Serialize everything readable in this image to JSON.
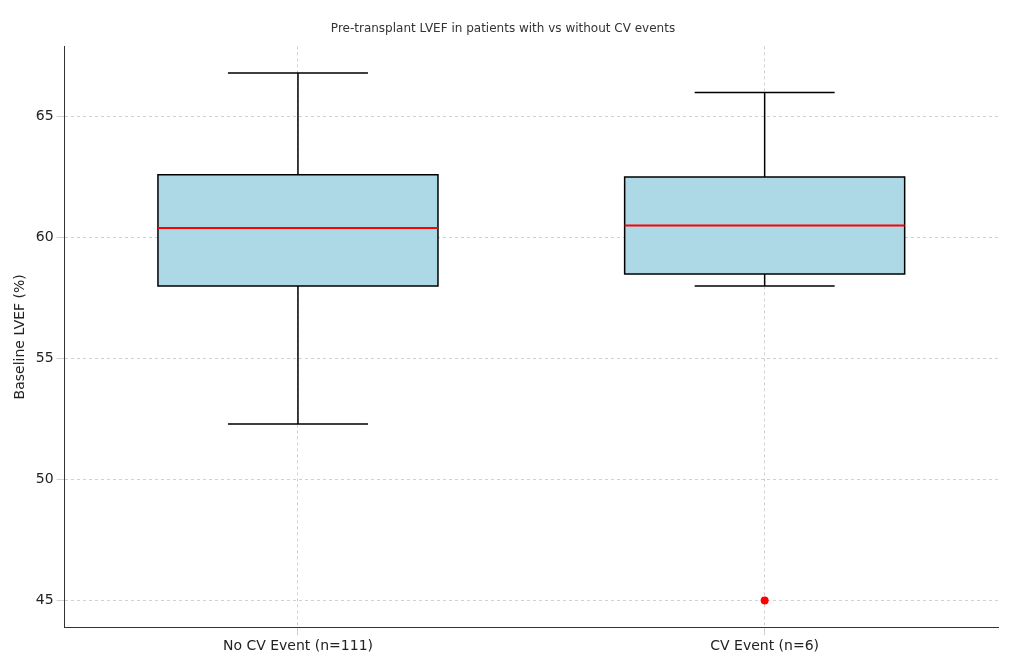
{
  "chart_data": {
    "type": "box",
    "title": "Pre-transplant LVEF in patients with vs without CV events",
    "ylabel": "Baseline LVEF (%)",
    "categories": [
      "No CV Event (n=111)",
      "CV Event (n=6)"
    ],
    "color": "#add8e6",
    "boxes": [
      {
        "low": 52.3,
        "q1": 58.0,
        "median": 60.4,
        "q3": 62.6,
        "high": 66.8
      },
      {
        "low": 58.0,
        "q1": 58.5,
        "median": 60.5,
        "q3": 62.5,
        "high": 66.0,
        "outliers": [
          45.0
        ]
      }
    ],
    "ylim": [
      43.9,
      67.9
    ],
    "yticks": [
      45,
      50,
      55,
      60,
      65
    ],
    "grid": true,
    "legend": false
  }
}
